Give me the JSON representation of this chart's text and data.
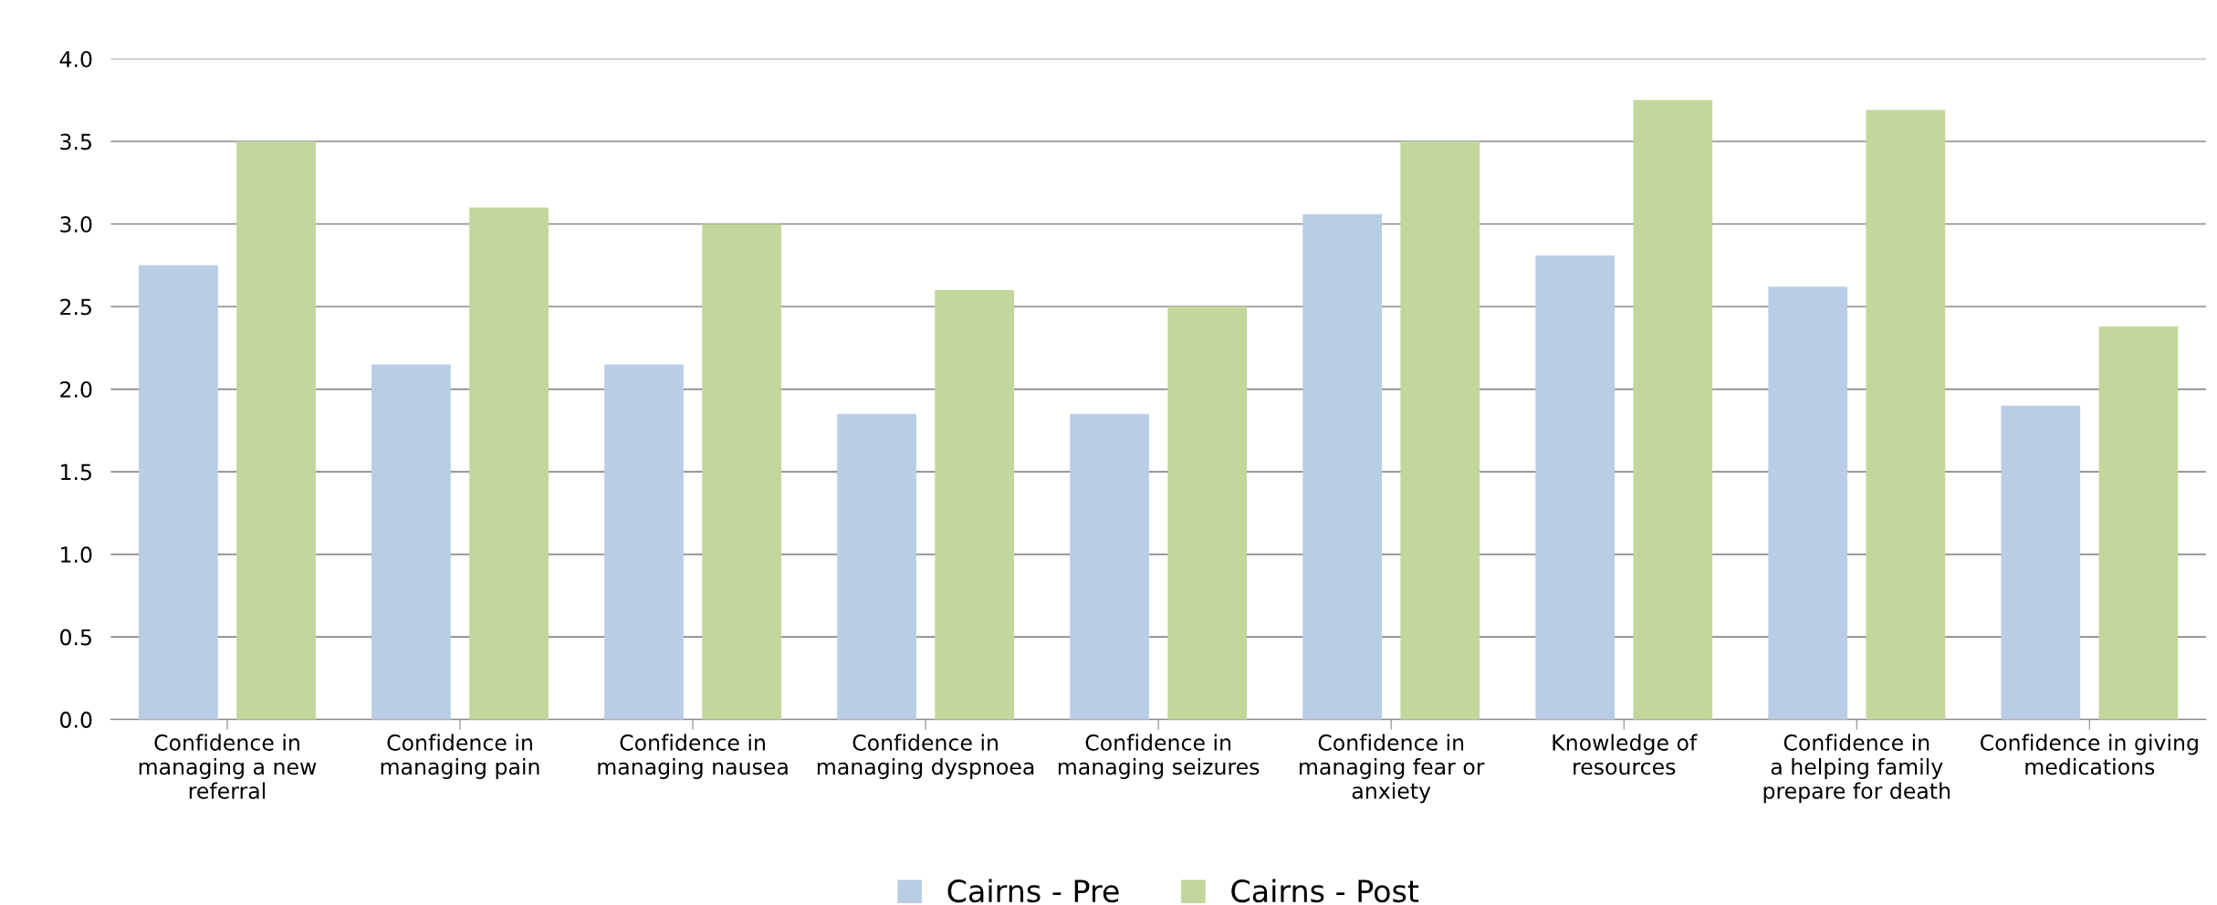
{
  "chart_data": {
    "type": "bar",
    "categories": [
      "Confidence in\nmanaging a new\nreferral",
      "Confidence in\nmanaging pain",
      "Confidence in\nmanaging nausea",
      "Confidence in\nmanaging dyspnoea",
      "Confidence in\nmanaging seizures",
      "Confidence in\nmanaging fear or\nanxiety",
      "Knowledge of\nresources",
      "Confidence in\na helping family\nprepare for death",
      "Confidence in giving\nmedications"
    ],
    "series": [
      {
        "name": "Cairns - Pre",
        "color": "#b9cde5",
        "values": [
          2.75,
          2.15,
          2.15,
          1.85,
          1.85,
          3.06,
          2.81,
          2.62,
          1.9
        ]
      },
      {
        "name": "Cairns - Post",
        "color": "#c3d69b",
        "values": [
          3.5,
          3.1,
          3.0,
          2.6,
          2.5,
          3.5,
          3.75,
          3.69,
          2.38
        ]
      }
    ],
    "ylim": [
      0,
      4
    ],
    "yticks": [
      {
        "value": 0,
        "label": "0.0"
      },
      {
        "value": 0.5,
        "label": "0.5"
      },
      {
        "value": 1,
        "label": "1.0"
      },
      {
        "value": 1.5,
        "label": "1.5"
      },
      {
        "value": 2,
        "label": "2.0"
      },
      {
        "value": 2.5,
        "label": "2.5"
      },
      {
        "value": 3,
        "label": "3.0"
      },
      {
        "value": 3.5,
        "label": "3.5"
      },
      {
        "value": 4,
        "label": "4.0"
      }
    ],
    "grid": "y",
    "legend": "bottom"
  }
}
